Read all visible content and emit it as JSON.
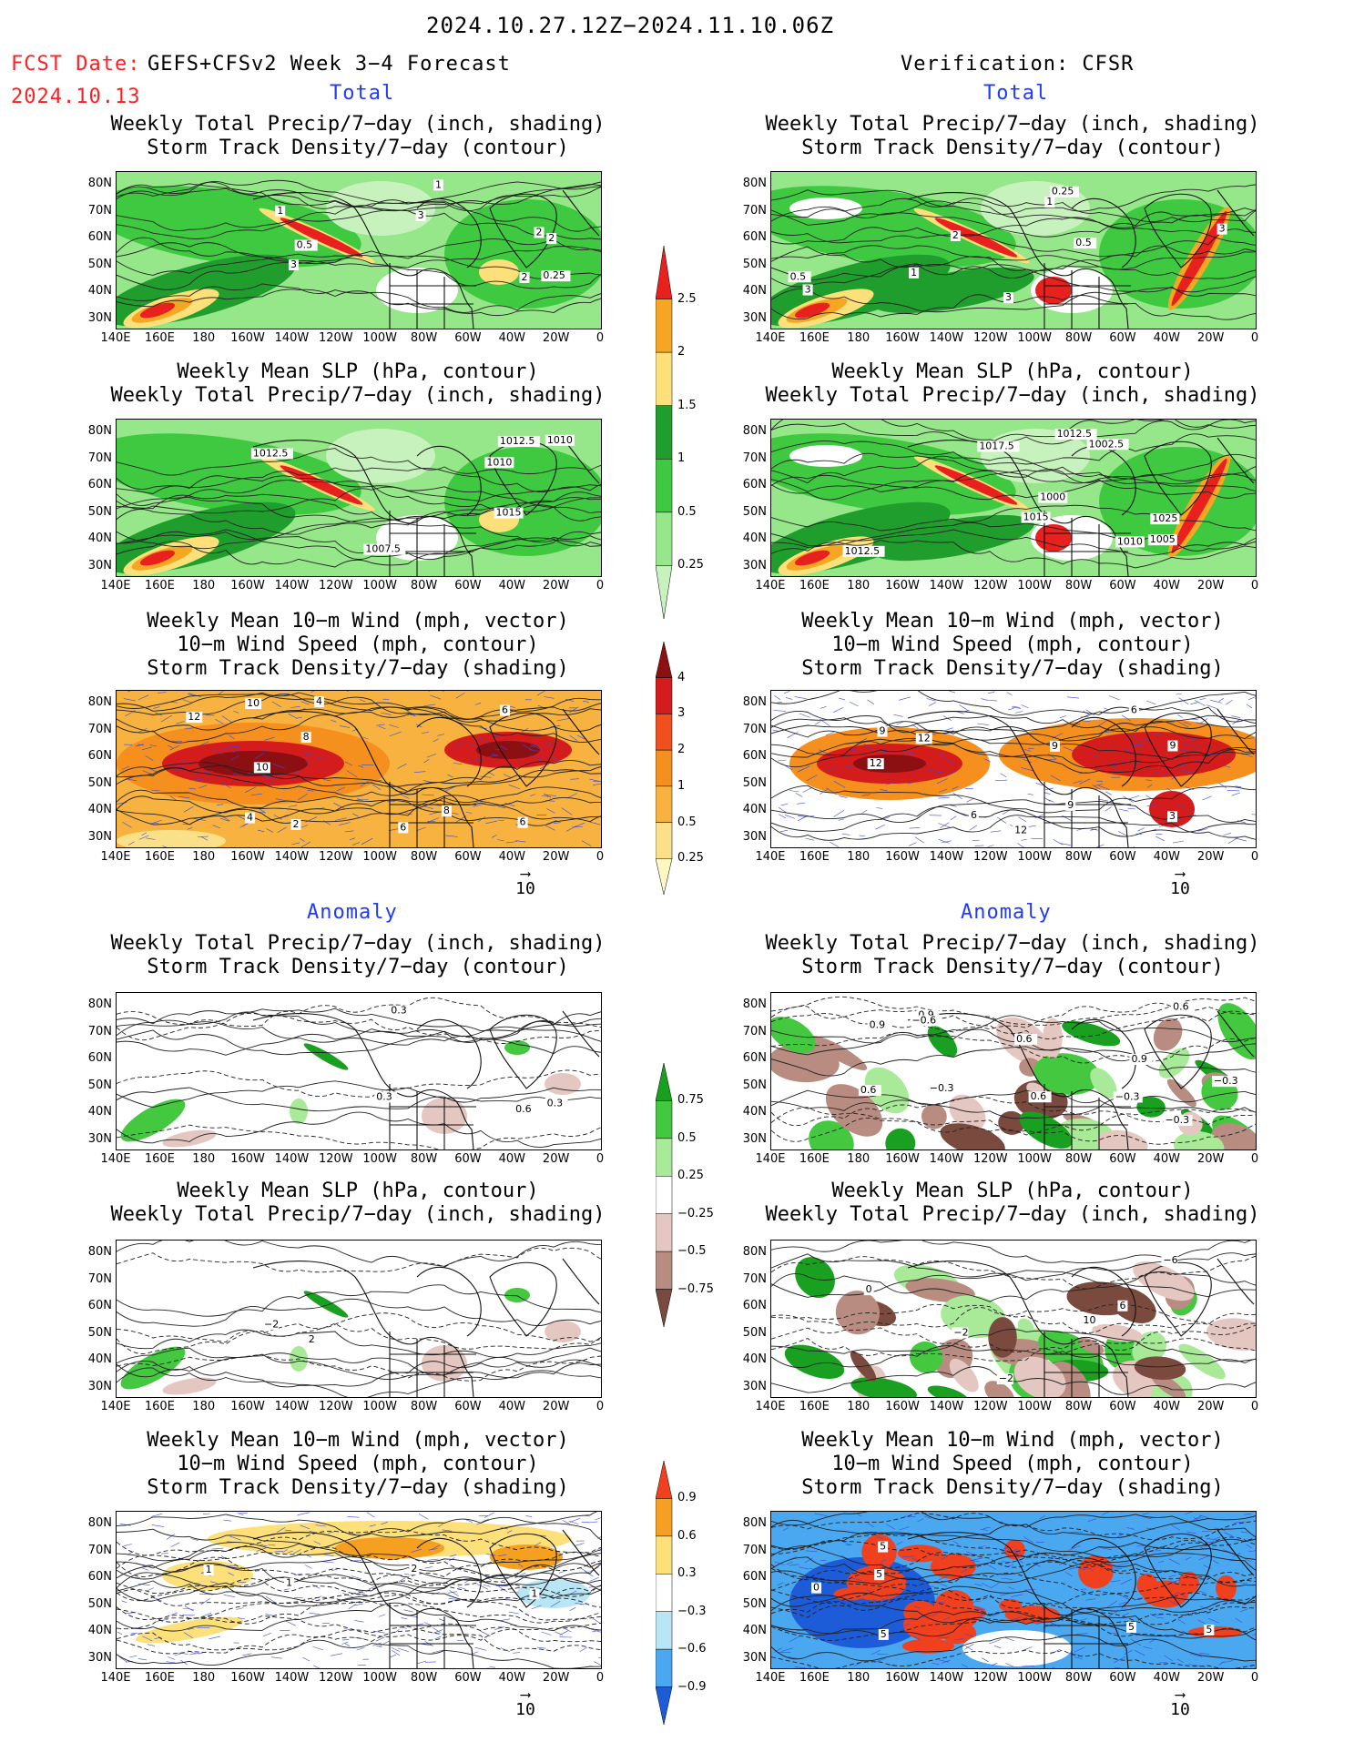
{
  "header": {
    "period": "2024.10.27.12Z−2024.11.10.06Z",
    "fcst_label": "FCST Date:",
    "fcst_model": "GEFS+CFSv2 Week 3−4 Forecast",
    "fcst_date": "2024.10.13",
    "verification": "Verification: CFSR"
  },
  "sections": {
    "total": "Total",
    "anomaly": "Anomaly"
  },
  "titles": {
    "precip_track": [
      "Weekly Total Precip/7−day (inch, shading)",
      "Storm Track Density/7−day (contour)"
    ],
    "slp_precip": [
      "Weekly Mean SLP (hPa, contour)",
      "Weekly Total Precip/7−day (inch, shading)"
    ],
    "wind_track": [
      "Weekly Mean 10−m Wind (mph, vector)",
      "10−m Wind Speed (mph, contour)",
      "Storm Track Density/7−day (shading)"
    ]
  },
  "axes": {
    "lat": [
      "80N",
      "70N",
      "60N",
      "50N",
      "40N",
      "30N"
    ],
    "lon": [
      "140E",
      "160E",
      "180",
      "160W",
      "140W",
      "120W",
      "100W",
      "80W",
      "60W",
      "40W",
      "20W",
      "0"
    ]
  },
  "vector_ref": "10",
  "colorbars": [
    {
      "id": "precip_total",
      "labels": [
        "2.5",
        "2",
        "1.5",
        "1",
        "0.5",
        "0.25"
      ],
      "colors": [
        "#e8201e",
        "#f5a623",
        "#fde07a",
        "#1f9e2e",
        "#3fc940",
        "#96e68a",
        "#c8f2bd"
      ]
    },
    {
      "id": "track_total",
      "labels": [
        "4",
        "3",
        "2",
        "1",
        "0.5",
        "0.25"
      ],
      "colors": [
        "#8c0f12",
        "#d41c1c",
        "#f0501e",
        "#f5901e",
        "#f7b240",
        "#fbe08a",
        "#fff7c2"
      ]
    },
    {
      "id": "precip_anom",
      "labels": [
        "0.75",
        "0.5",
        "0.25",
        "−0.25",
        "−0.5",
        "−0.75"
      ],
      "colors": [
        "#1aa020",
        "#43c840",
        "#a8ea98",
        "#ffffff",
        "#e4c7c0",
        "#b88c80",
        "#7a4a3e"
      ]
    },
    {
      "id": "track_anom",
      "labels": [
        "0.9",
        "0.6",
        "0.3",
        "−0.3",
        "−0.6",
        "−0.9"
      ],
      "colors": [
        "#f0401e",
        "#f5a020",
        "#fde07a",
        "#ffffff",
        "#b8e6f5",
        "#4aa8f0",
        "#1c5cd8"
      ]
    }
  ],
  "panels": {
    "f_total_precip": {
      "contour_labels": [
        "1",
        "2",
        "3",
        "2",
        "0.5",
        "0.25",
        "3",
        "1",
        "2"
      ]
    },
    "v_total_precip": {
      "contour_labels": [
        "0.25",
        "3",
        "1",
        "0.5",
        "3",
        "3",
        "2",
        "1",
        "0.5"
      ]
    },
    "f_total_slp": {
      "contour_labels": [
        "1012.5",
        "1012.5",
        "1010",
        "1015",
        "1010",
        "1007.5"
      ]
    },
    "v_total_slp": {
      "contour_labels": [
        "1012.5",
        "1025",
        "1000",
        "1015",
        "1017.5",
        "1012.5",
        "1005",
        "1002.5",
        "1010"
      ]
    },
    "f_total_wind": {
      "contour_labels": [
        "2",
        "6",
        "4",
        "8",
        "10",
        "12",
        "10",
        "6",
        "4",
        "8",
        "6"
      ]
    },
    "v_total_wind": {
      "contour_labels": [
        "9",
        "12",
        "9",
        "6",
        "3",
        "9",
        "12",
        "6",
        "12",
        "9"
      ]
    },
    "f_anom_precip": {
      "contour_labels": [
        "0.6",
        "0.3",
        "0.3",
        "0.3"
      ]
    },
    "v_anom_precip": {
      "contour_labels": [
        "0.6",
        "0.6",
        "0.9",
        "0.9",
        "−0.3",
        "0.9",
        "−0.3",
        "0.6",
        "−0.6",
        "−0.3",
        "0.6",
        "−0.3"
      ]
    },
    "f_anom_slp": {
      "contour_labels": [
        "2",
        "−2"
      ]
    },
    "v_anom_slp": {
      "contour_labels": [
        "10",
        "−6",
        "−2",
        "0",
        "6",
        "−2"
      ]
    },
    "f_anom_wind": {
      "contour_labels": [
        "1",
        "2",
        "1",
        "1"
      ]
    },
    "v_anom_wind": {
      "contour_labels": [
        "5",
        "5",
        "5",
        "0",
        "5",
        "5"
      ]
    }
  }
}
